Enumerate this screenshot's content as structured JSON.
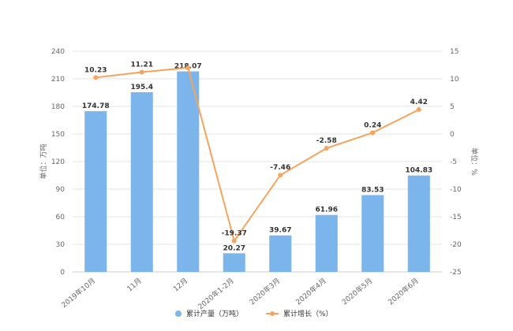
{
  "chart_data": {
    "type": "bar",
    "categories": [
      "2019年10月",
      "11月",
      "12月",
      "2020年1-2月",
      "2020年3月",
      "2020年4月",
      "2020年5月",
      "2020年6月"
    ],
    "series": [
      {
        "name": "累计产量（万吨）",
        "type": "bar",
        "axis": "left",
        "color": "#7cb5ec",
        "values": [
          174.78,
          195.4,
          218.07,
          20.27,
          39.67,
          61.96,
          83.53,
          104.83
        ]
      },
      {
        "name": "累计增长（%）",
        "type": "line",
        "axis": "right",
        "color": "#f7a35c",
        "values": [
          10.23,
          11.21,
          12,
          -19.37,
          -7.46,
          -2.58,
          0.24,
          4.42
        ]
      }
    ],
    "left_axis": {
      "label": "单位：万吨",
      "ylim": [
        0,
        240
      ],
      "ticks": [
        0,
        30,
        60,
        90,
        120,
        150,
        180,
        210,
        240
      ]
    },
    "right_axis": {
      "label": "单位：%",
      "ylim": [
        -25,
        15
      ],
      "ticks": [
        15,
        10,
        5,
        0,
        -5,
        -10,
        -15,
        -20,
        -25
      ]
    },
    "grid": true,
    "legend_position": "bottom-center"
  }
}
